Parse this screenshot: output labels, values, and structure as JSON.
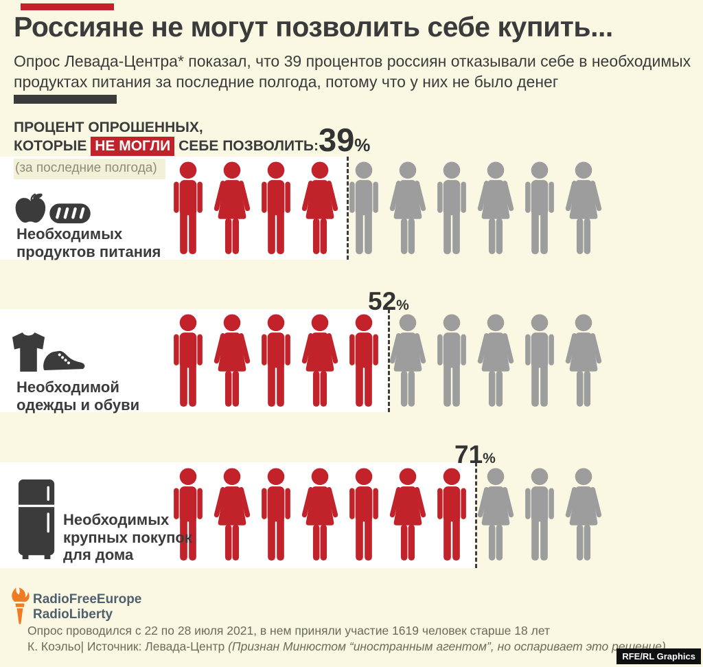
{
  "header": {
    "title": "Россияне не могут позволить себе купить...",
    "subtitle": "Опрос Левада-Центра* показал, что 39 процентов россиян отказывали себе в необходимых продуктах питания за последние полгода, потому что у них не было денег"
  },
  "legend": {
    "line1": "ПРОЦЕНТ ОПРОШЕННЫХ,",
    "line2_prefix": "КОТОРЫЕ",
    "line2_highlight": "НЕ МОГЛИ",
    "line2_suffix": "СЕБЕ ПОЗВОЛИТЬ:",
    "note": "(за последние полгода)"
  },
  "chart_data": {
    "type": "pictogram-bar",
    "unit_total": 10,
    "percent_sign": "%",
    "categories": [
      "Необходимых продуктов питания",
      "Необходимой одежды и обуви",
      "Необходимых крупных покупок для дома"
    ],
    "values": [
      39,
      52,
      71
    ],
    "rows": [
      {
        "percent_label": "39",
        "value": 39,
        "filled_units": 4,
        "label_lines": [
          "Необходимых",
          "продуктов питания"
        ],
        "icons": [
          "apple-icon",
          "bread-icon"
        ]
      },
      {
        "percent_label": "52",
        "value": 52,
        "filled_units": 5,
        "label_lines": [
          "Необходимой",
          "одежды и обуви"
        ],
        "icons": [
          "tshirt-icon",
          "shoe-icon"
        ]
      },
      {
        "percent_label": "71",
        "value": 71,
        "filled_units": 7,
        "label_lines": [
          "Необходимых",
          "крупных покупок",
          "для дома"
        ],
        "icons": [
          "fridge-icon"
        ]
      }
    ],
    "colors": {
      "filled": "#c2232b",
      "empty": "#9d9d9d",
      "icon": "#3b3b3b",
      "background": "#faf8e2",
      "band": "#ffffff"
    }
  },
  "footer": {
    "logo_line1": "RadioFreeEurope",
    "logo_line2": "RadioLiberty",
    "note_line1": "Опрос проводился с 22 по 28 июля 2021, в нем приняли участие 1619 человек старше 18 лет",
    "credit_prefix": "К. Коэльо| Источник: Левада-Центр ",
    "credit_italic": "(Признан Минюстом “иностранным агентом”, но оспаривает это решение)",
    "graphics_badge": "RFE/RL Graphics"
  }
}
